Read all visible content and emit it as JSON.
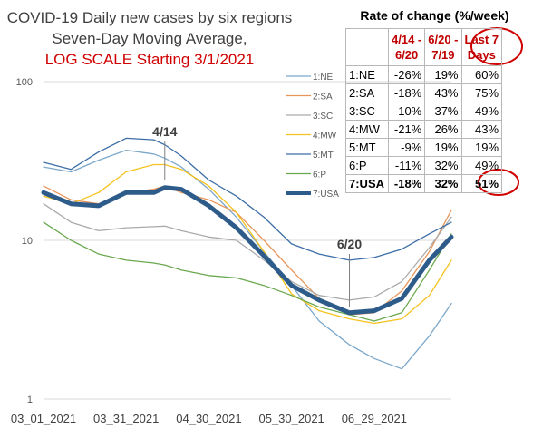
{
  "title_lines": [
    "COVID-19 Daily new cases by six regions",
    "Seven-Day Moving Average,"
  ],
  "title_red": "LOG SCALE Starting 3/1/2021",
  "colors": {
    "1:NE": "#7ba7c9",
    "2:SA": "#e8955a",
    "3:SC": "#aaaaaa",
    "4:MW": "#f4c21e",
    "5:MT": "#3c6ea7",
    "6:P": "#6aa84f",
    "7:USA": "#2e5c8a",
    "accent": "#d00000"
  },
  "annotations": [
    {
      "text": "4/14",
      "x": "04/14/2021",
      "y": 22
    },
    {
      "text": "6/20",
      "x": "06/20/2021",
      "y": 3.5
    }
  ],
  "rate_table": {
    "title": "Rate of change (%/week)",
    "headers": [
      "4/14 - 6/20",
      "6/20 - 7/19",
      "Last 7 Days"
    ],
    "rows": [
      {
        "label": "1:NE",
        "v": [
          "-26%",
          "19%",
          "60%"
        ]
      },
      {
        "label": "2:SA",
        "v": [
          "-18%",
          "43%",
          "75%"
        ]
      },
      {
        "label": "3:SC",
        "v": [
          "-10%",
          "37%",
          "49%"
        ]
      },
      {
        "label": "4:MW",
        "v": [
          "-21%",
          "26%",
          "43%"
        ]
      },
      {
        "label": "5:MT",
        "v": [
          "-9%",
          "19%",
          "19%"
        ]
      },
      {
        "label": "6:P",
        "v": [
          "-11%",
          "32%",
          "49%"
        ]
      },
      {
        "label": "7:USA",
        "v": [
          "-18%",
          "32%",
          "51%"
        ]
      }
    ]
  },
  "chart_data": {
    "type": "line",
    "title": "COVID-19 Daily new cases by six regions Seven-Day Moving Average, LOG SCALE Starting 3/1/2021",
    "y_scale": "log",
    "ylim": [
      1,
      100
    ],
    "yticks": [
      "1",
      "10",
      "100"
    ],
    "xticks": [
      "03_01_2021",
      "03_31_2021",
      "04_30_2021",
      "05_30_2021",
      "06_29_2021"
    ],
    "x_range": [
      "03/01/2021",
      "07/27/2021"
    ],
    "grid": "horizontal",
    "legend_position": "right",
    "x": [
      "03/01/2021",
      "03/11/2021",
      "03/21/2021",
      "03/31/2021",
      "04/10/2021",
      "04/14/2021",
      "04/20/2021",
      "04/30/2021",
      "05/10/2021",
      "05/20/2021",
      "05/30/2021",
      "06/09/2021",
      "06/20/2021",
      "06/29/2021",
      "07/09/2021",
      "07/19/2021",
      "07/27/2021"
    ],
    "series": [
      {
        "name": "1:NE",
        "values": [
          29,
          27,
          32,
          37,
          35,
          33,
          29,
          21,
          14,
          8.5,
          5.2,
          3.1,
          2.2,
          1.8,
          1.55,
          2.5,
          4.0
        ]
      },
      {
        "name": "2:SA",
        "values": [
          22,
          18,
          17,
          20,
          21,
          22,
          20,
          18,
          15,
          10,
          6.5,
          4.3,
          3.4,
          3.5,
          4.8,
          8.5,
          15.5
        ]
      },
      {
        "name": "3:SC",
        "values": [
          17,
          13,
          11.5,
          12,
          12.2,
          12.3,
          11.5,
          10.5,
          10,
          7.5,
          5.5,
          4.5,
          4.2,
          4.4,
          5.5,
          9,
          14
        ]
      },
      {
        "name": "4:MW",
        "values": [
          19,
          17,
          20,
          27,
          30,
          30,
          28,
          22,
          15,
          8.5,
          4.6,
          3.6,
          3.2,
          3.0,
          3.2,
          4.5,
          7.5
        ]
      },
      {
        "name": "5:MT",
        "values": [
          31,
          28,
          36,
          44,
          43,
          40,
          34,
          24,
          19,
          14,
          9.5,
          8.2,
          7.5,
          7.8,
          8.8,
          11,
          13
        ]
      },
      {
        "name": "6:P",
        "values": [
          13,
          10,
          8.2,
          7.5,
          7.2,
          7.0,
          6.5,
          6.0,
          5.8,
          5.2,
          4.5,
          3.8,
          3.4,
          3.1,
          3.5,
          6.5,
          11
        ]
      },
      {
        "name": "7:USA",
        "values": [
          20,
          17,
          16.5,
          20,
          20,
          21.5,
          21,
          16.5,
          12,
          8,
          5.2,
          4.2,
          3.5,
          3.6,
          4.3,
          7.5,
          10.5
        ]
      }
    ]
  }
}
